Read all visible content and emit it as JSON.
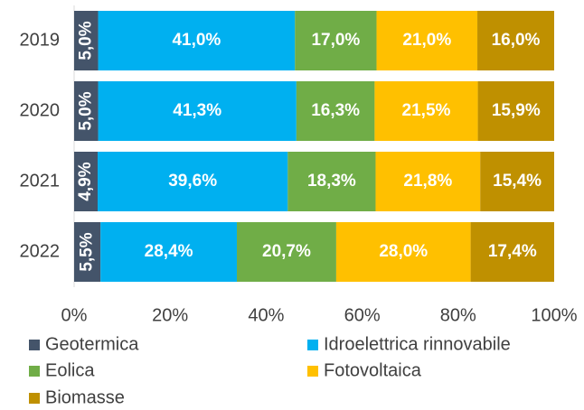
{
  "chart_data": {
    "type": "bar",
    "orientation": "horizontal",
    "stacked": true,
    "categories": [
      "2019",
      "2020",
      "2021",
      "2022"
    ],
    "series": [
      {
        "name": "Geotermica",
        "color": "#44546a",
        "values": [
          5.0,
          5.0,
          4.9,
          5.5
        ],
        "value_labels": [
          "5,0%",
          "5,0%",
          "4,9%",
          "5,5%"
        ]
      },
      {
        "name": "Idroelettrica rinnovabile",
        "color": "#00b0f0",
        "values": [
          41.0,
          41.3,
          39.6,
          28.4
        ],
        "value_labels": [
          "41,0%",
          "41,3%",
          "39,6%",
          "28,4%"
        ]
      },
      {
        "name": "Eolica",
        "color": "#70ad47",
        "values": [
          17.0,
          16.3,
          18.3,
          20.7
        ],
        "value_labels": [
          "17,0%",
          "16,3%",
          "18,3%",
          "20,7%"
        ]
      },
      {
        "name": "Fotovoltaica",
        "color": "#ffc000",
        "values": [
          21.0,
          21.5,
          21.8,
          28.0
        ],
        "value_labels": [
          "21,0%",
          "21,5%",
          "21,8%",
          "28,0%"
        ]
      },
      {
        "name": "Biomasse",
        "color": "#bf9000",
        "values": [
          16.0,
          15.9,
          15.4,
          17.4
        ],
        "value_labels": [
          "16,0%",
          "15,9%",
          "15,4%",
          "17,4%"
        ]
      }
    ],
    "xlim": [
      0,
      100
    ],
    "xticks": [
      {
        "value": 0,
        "label": "0%"
      },
      {
        "value": 20,
        "label": "20%"
      },
      {
        "value": 40,
        "label": "40%"
      },
      {
        "value": 60,
        "label": "60%"
      },
      {
        "value": 80,
        "label": "80%"
      },
      {
        "value": 100,
        "label": "100%"
      }
    ],
    "legend": "bottom"
  }
}
